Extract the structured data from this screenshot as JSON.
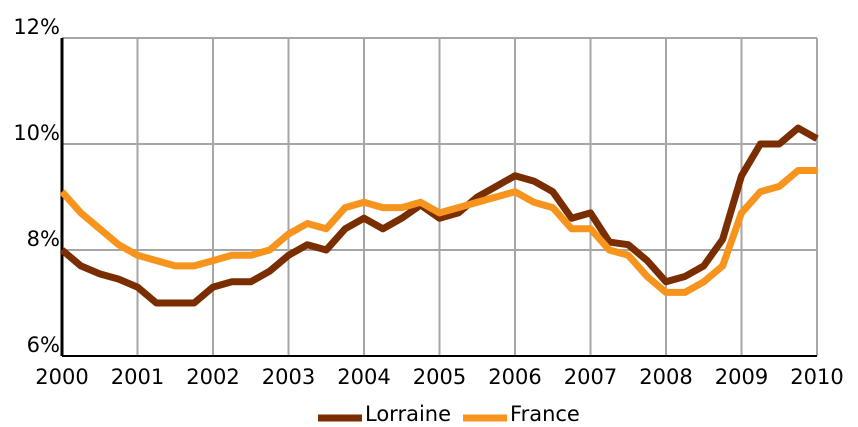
{
  "chart_data": {
    "type": "line",
    "x": [
      2000,
      2000.25,
      2000.5,
      2000.75,
      2001,
      2001.25,
      2001.5,
      2001.75,
      2002,
      2002.25,
      2002.5,
      2002.75,
      2003,
      2003.25,
      2003.5,
      2003.75,
      2004,
      2004.25,
      2004.5,
      2004.75,
      2005,
      2005.25,
      2005.5,
      2005.75,
      2006,
      2006.25,
      2006.5,
      2006.75,
      2007,
      2007.25,
      2007.5,
      2007.75,
      2008,
      2008.25,
      2008.5,
      2008.75,
      2009,
      2009.25,
      2009.5,
      2009.75,
      2010
    ],
    "series": [
      {
        "name": "Lorraine",
        "color": "#7a2e00",
        "values": [
          8.0,
          7.7,
          7.55,
          7.45,
          7.3,
          7.0,
          7.0,
          7.0,
          7.3,
          7.4,
          7.4,
          7.6,
          7.9,
          8.1,
          8.0,
          8.4,
          8.6,
          8.4,
          8.6,
          8.85,
          8.6,
          8.7,
          9.0,
          9.2,
          9.4,
          9.3,
          9.1,
          8.6,
          8.7,
          8.15,
          8.1,
          7.8,
          7.4,
          7.5,
          7.7,
          8.2,
          9.4,
          10.0,
          10.0,
          10.3,
          10.1
        ]
      },
      {
        "name": "France",
        "color": "#f7941d",
        "values": [
          9.1,
          8.7,
          8.4,
          8.1,
          7.9,
          7.8,
          7.7,
          7.7,
          7.8,
          7.9,
          7.9,
          8.0,
          8.3,
          8.5,
          8.4,
          8.8,
          8.9,
          8.8,
          8.8,
          8.9,
          8.7,
          8.8,
          8.9,
          9.0,
          9.1,
          8.9,
          8.8,
          8.4,
          8.4,
          8.0,
          7.9,
          7.5,
          7.2,
          7.2,
          7.4,
          7.7,
          8.7,
          9.1,
          9.2,
          9.5,
          9.5
        ]
      }
    ],
    "xlim": [
      2000,
      2010
    ],
    "xticks": [
      2000,
      2001,
      2002,
      2003,
      2004,
      2005,
      2006,
      2007,
      2008,
      2009,
      2010
    ],
    "ylim": [
      6,
      12
    ],
    "yticks": [
      {
        "value": 6,
        "label": "6%"
      },
      {
        "value": 8,
        "label": "8%"
      },
      {
        "value": 10,
        "label": "10%"
      },
      {
        "value": 12,
        "label": "12%"
      }
    ],
    "grid": true,
    "legend": "bottom"
  }
}
